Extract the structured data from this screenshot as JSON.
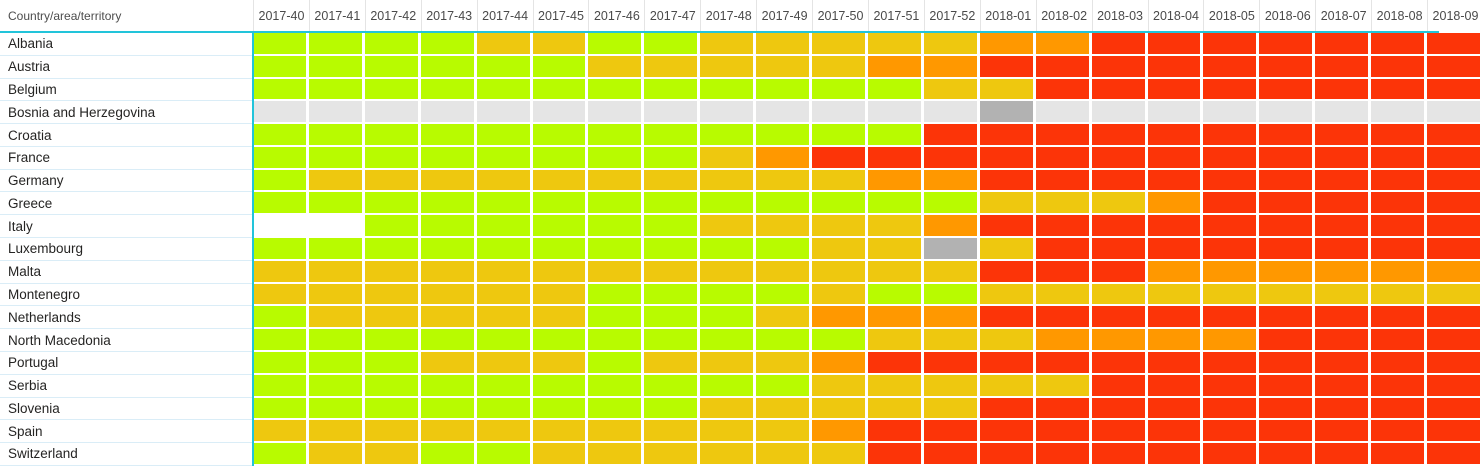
{
  "chart_data": {
    "type": "heatmap",
    "row_label_header": "Country/area/territory",
    "x_labels": [
      "2017-40",
      "2017-41",
      "2017-42",
      "2017-43",
      "2017-44",
      "2017-45",
      "2017-46",
      "2017-47",
      "2017-48",
      "2017-49",
      "2017-50",
      "2017-51",
      "2017-52",
      "2018-01",
      "2018-02",
      "2018-03",
      "2018-04",
      "2018-05",
      "2018-06",
      "2018-07",
      "2018-08",
      "2018-09"
    ],
    "last_column_partially_visible": true,
    "palette": {
      "G": "#b8fb00",
      "Y": "#eec80f",
      "O": "#ff9800",
      "R": "#fc3408",
      "LG": "#e5e5e5",
      "DG": "#b2b2b2",
      "W": "#ffffff"
    },
    "palette_names": {
      "G": "green",
      "Y": "yellow",
      "O": "orange",
      "R": "red",
      "LG": "light-gray",
      "DG": "dark-gray",
      "W": "white-blank"
    },
    "rows": [
      {
        "label": "Albania",
        "cells": [
          "G",
          "G",
          "G",
          "G",
          "Y",
          "Y",
          "G",
          "G",
          "Y",
          "Y",
          "Y",
          "Y",
          "Y",
          "O",
          "O",
          "R",
          "R",
          "R",
          "R",
          "R",
          "R",
          "R"
        ]
      },
      {
        "label": "Austria",
        "cells": [
          "G",
          "G",
          "G",
          "G",
          "G",
          "G",
          "Y",
          "Y",
          "Y",
          "Y",
          "Y",
          "O",
          "O",
          "R",
          "R",
          "R",
          "R",
          "R",
          "R",
          "R",
          "R",
          "R"
        ]
      },
      {
        "label": "Belgium",
        "cells": [
          "G",
          "G",
          "G",
          "G",
          "G",
          "G",
          "G",
          "G",
          "G",
          "G",
          "G",
          "G",
          "Y",
          "Y",
          "R",
          "R",
          "R",
          "R",
          "R",
          "R",
          "R",
          "R"
        ]
      },
      {
        "label": "Bosnia and Herzegovina",
        "cells": [
          "LG",
          "LG",
          "LG",
          "LG",
          "LG",
          "LG",
          "LG",
          "LG",
          "LG",
          "LG",
          "LG",
          "LG",
          "LG",
          "DG",
          "LG",
          "LG",
          "LG",
          "LG",
          "LG",
          "LG",
          "LG",
          "LG"
        ]
      },
      {
        "label": "Croatia",
        "cells": [
          "G",
          "G",
          "G",
          "G",
          "G",
          "G",
          "G",
          "G",
          "G",
          "G",
          "G",
          "G",
          "R",
          "R",
          "R",
          "R",
          "R",
          "R",
          "R",
          "R",
          "R",
          "R"
        ]
      },
      {
        "label": "France",
        "cells": [
          "G",
          "G",
          "G",
          "G",
          "G",
          "G",
          "G",
          "G",
          "Y",
          "O",
          "R",
          "R",
          "R",
          "R",
          "R",
          "R",
          "R",
          "R",
          "R",
          "R",
          "R",
          "R"
        ]
      },
      {
        "label": "Germany",
        "cells": [
          "G",
          "Y",
          "Y",
          "Y",
          "Y",
          "Y",
          "Y",
          "Y",
          "Y",
          "Y",
          "Y",
          "O",
          "O",
          "R",
          "R",
          "R",
          "R",
          "R",
          "R",
          "R",
          "R",
          "R"
        ]
      },
      {
        "label": "Greece",
        "cells": [
          "G",
          "G",
          "G",
          "G",
          "G",
          "G",
          "G",
          "G",
          "G",
          "G",
          "G",
          "G",
          "G",
          "Y",
          "Y",
          "Y",
          "O",
          "R",
          "R",
          "R",
          "R",
          "R"
        ]
      },
      {
        "label": "Italy",
        "cells": [
          "W",
          "W",
          "G",
          "G",
          "G",
          "G",
          "G",
          "G",
          "Y",
          "Y",
          "Y",
          "Y",
          "O",
          "R",
          "R",
          "R",
          "R",
          "R",
          "R",
          "R",
          "R",
          "R"
        ]
      },
      {
        "label": "Luxembourg",
        "cells": [
          "G",
          "G",
          "G",
          "G",
          "G",
          "G",
          "G",
          "G",
          "G",
          "G",
          "Y",
          "Y",
          "DG",
          "Y",
          "R",
          "R",
          "R",
          "R",
          "R",
          "R",
          "R",
          "R"
        ]
      },
      {
        "label": "Malta",
        "cells": [
          "Y",
          "Y",
          "Y",
          "Y",
          "Y",
          "Y",
          "Y",
          "Y",
          "Y",
          "Y",
          "Y",
          "Y",
          "Y",
          "R",
          "R",
          "R",
          "O",
          "O",
          "O",
          "O",
          "O",
          "O"
        ]
      },
      {
        "label": "Montenegro",
        "cells": [
          "Y",
          "Y",
          "Y",
          "Y",
          "Y",
          "Y",
          "G",
          "G",
          "G",
          "G",
          "Y",
          "G",
          "G",
          "Y",
          "Y",
          "Y",
          "Y",
          "Y",
          "Y",
          "Y",
          "Y",
          "Y"
        ]
      },
      {
        "label": "Netherlands",
        "cells": [
          "G",
          "Y",
          "Y",
          "Y",
          "Y",
          "Y",
          "G",
          "G",
          "G",
          "Y",
          "O",
          "O",
          "O",
          "R",
          "R",
          "R",
          "R",
          "R",
          "R",
          "R",
          "R",
          "R"
        ]
      },
      {
        "label": "North Macedonia",
        "cells": [
          "G",
          "G",
          "G",
          "G",
          "G",
          "G",
          "G",
          "G",
          "G",
          "G",
          "G",
          "Y",
          "Y",
          "Y",
          "O",
          "O",
          "O",
          "O",
          "R",
          "R",
          "R",
          "R"
        ]
      },
      {
        "label": "Portugal",
        "cells": [
          "G",
          "G",
          "G",
          "Y",
          "Y",
          "Y",
          "G",
          "Y",
          "Y",
          "Y",
          "O",
          "R",
          "R",
          "R",
          "R",
          "R",
          "R",
          "R",
          "R",
          "R",
          "R",
          "R"
        ]
      },
      {
        "label": "Serbia",
        "cells": [
          "G",
          "G",
          "G",
          "G",
          "G",
          "G",
          "G",
          "G",
          "G",
          "G",
          "Y",
          "Y",
          "Y",
          "Y",
          "Y",
          "R",
          "R",
          "R",
          "R",
          "R",
          "R",
          "R"
        ]
      },
      {
        "label": "Slovenia",
        "cells": [
          "G",
          "G",
          "G",
          "G",
          "G",
          "G",
          "G",
          "G",
          "Y",
          "Y",
          "Y",
          "Y",
          "Y",
          "R",
          "R",
          "R",
          "R",
          "R",
          "R",
          "R",
          "R",
          "R"
        ]
      },
      {
        "label": "Spain",
        "cells": [
          "Y",
          "Y",
          "Y",
          "Y",
          "Y",
          "Y",
          "Y",
          "Y",
          "Y",
          "Y",
          "O",
          "R",
          "R",
          "R",
          "R",
          "R",
          "R",
          "R",
          "R",
          "R",
          "R",
          "R"
        ]
      },
      {
        "label": "Switzerland",
        "cells": [
          "G",
          "Y",
          "Y",
          "G",
          "G",
          "Y",
          "Y",
          "Y",
          "Y",
          "Y",
          "Y",
          "R",
          "R",
          "R",
          "R",
          "R",
          "R",
          "R",
          "R",
          "R",
          "R",
          "R"
        ]
      }
    ]
  },
  "accent": {
    "teal_line": "#22c4da",
    "header_separator": "#e4e4e4",
    "row_separator": "#daedf7",
    "header_text": "#4a4a4a",
    "label_text": "#252423"
  }
}
